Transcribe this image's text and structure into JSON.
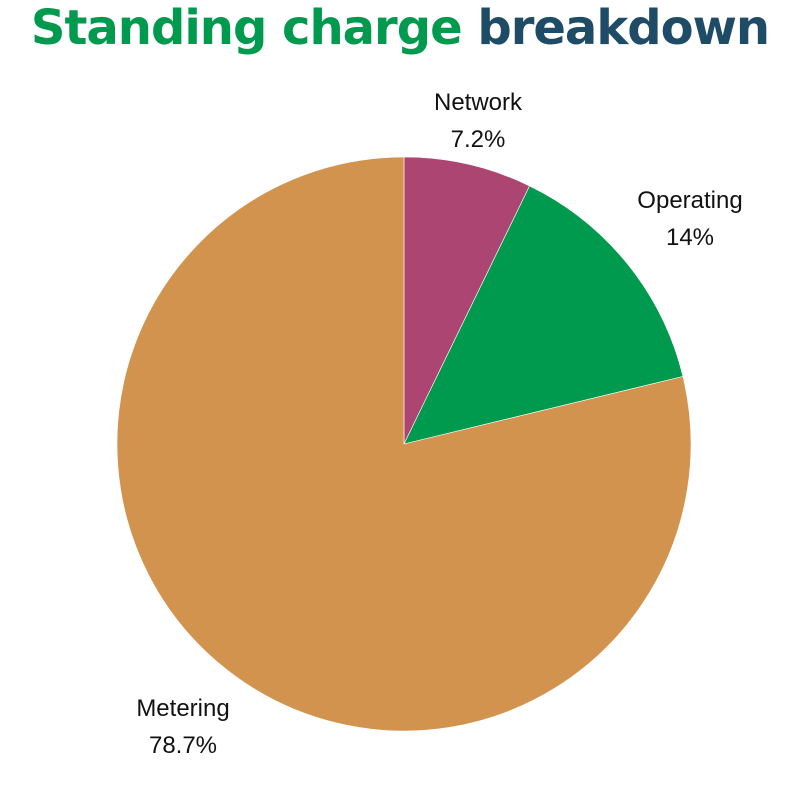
{
  "title": {
    "part1": "Standing charge",
    "part2": "breakdown",
    "colors": {
      "part1": "#009a4e",
      "part2": "#1e4b66"
    }
  },
  "chart_data": {
    "type": "pie",
    "start": "12 o'clock, clockwise",
    "slices": [
      {
        "name": "Network",
        "value": 7.2,
        "label": "7.2%",
        "color": "#ad4573"
      },
      {
        "name": "Operating",
        "value": 14,
        "label": "14%",
        "color": "#009a4e"
      },
      {
        "name": "Metering",
        "value": 78.7,
        "label": "78.7%",
        "color": "#d2934f"
      }
    ]
  }
}
